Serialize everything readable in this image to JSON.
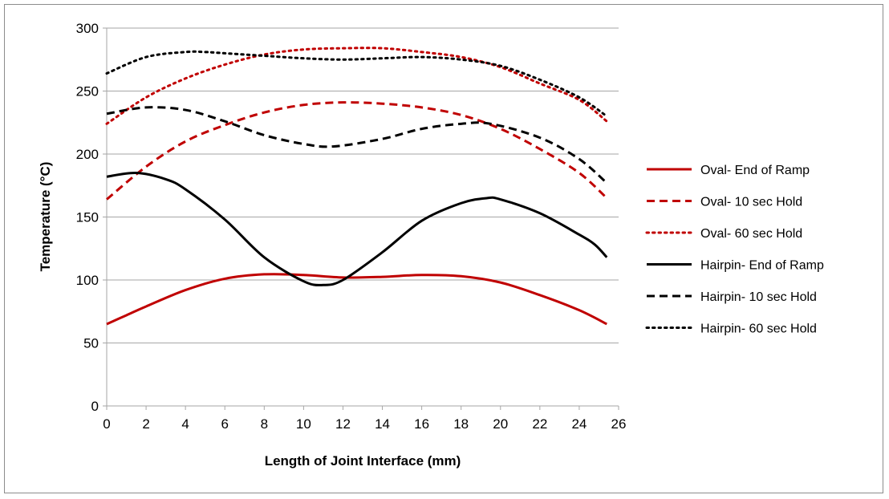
{
  "chart_data": {
    "type": "line",
    "title": "",
    "xlabel": "Length of Joint Interface (mm)",
    "ylabel": "Temperature (°C)",
    "xlim": [
      0,
      26
    ],
    "ylim": [
      0,
      300
    ],
    "xticks": [
      0,
      2,
      4,
      6,
      8,
      10,
      12,
      14,
      16,
      18,
      20,
      22,
      24,
      26
    ],
    "yticks": [
      0,
      50,
      100,
      150,
      200,
      250,
      300
    ],
    "grid": "horizontal",
    "legend": "right",
    "series": [
      {
        "name": "Oval- End of Ramp",
        "color": "#c00000",
        "style": "solid",
        "x": [
          0,
          1,
          2,
          4,
          6,
          8,
          10,
          12,
          14,
          16,
          18,
          20,
          22,
          24,
          25.4
        ],
        "y": [
          65,
          72,
          79,
          92,
          101,
          104.5,
          104,
          102,
          102.5,
          104,
          103,
          98,
          88,
          76,
          65
        ]
      },
      {
        "name": "Oval- 10 sec Hold",
        "color": "#c00000",
        "style": "dashed",
        "x": [
          0,
          2,
          4,
          6,
          8,
          10,
          12,
          14,
          16,
          18,
          20,
          22,
          24,
          25.4
        ],
        "y": [
          164,
          190,
          210,
          223,
          233,
          239,
          241,
          240,
          237,
          231,
          220,
          204,
          185,
          165
        ]
      },
      {
        "name": "Oval- 60 sec Hold",
        "color": "#c00000",
        "style": "dotted",
        "x": [
          0,
          2,
          4,
          6,
          8,
          10,
          12,
          14,
          16,
          18,
          20,
          22,
          24,
          25.4
        ],
        "y": [
          224,
          245,
          260,
          271,
          279,
          283,
          284,
          284,
          281,
          277,
          269,
          256,
          243,
          226
        ]
      },
      {
        "name": "Hairpin- End of Ramp",
        "color": "#000000",
        "style": "solid",
        "x": [
          0,
          1.5,
          3,
          4,
          6,
          8,
          10,
          11,
          12,
          14,
          16,
          18,
          19.3,
          20,
          22,
          24,
          24.8,
          25.4
        ],
        "y": [
          182,
          185,
          180,
          172,
          148,
          118,
          99,
          96,
          100,
          122,
          147,
          161,
          165,
          164,
          153,
          136,
          128,
          118
        ]
      },
      {
        "name": "Hairpin- 10 sec Hold",
        "color": "#000000",
        "style": "dashed",
        "x": [
          0,
          2,
          4,
          6,
          8,
          10,
          11.5,
          14,
          16,
          18,
          19.5,
          22,
          24,
          25.4
        ],
        "y": [
          232,
          237,
          235,
          226,
          215,
          208,
          206,
          212,
          220,
          224,
          224,
          213,
          196,
          177
        ]
      },
      {
        "name": "Hairpin- 60 sec Hold",
        "color": "#000000",
        "style": "dotted",
        "x": [
          0,
          2,
          4,
          5,
          6,
          8,
          10,
          12,
          14,
          16,
          18,
          20,
          22,
          24,
          25.4
        ],
        "y": [
          264,
          277,
          281,
          281,
          280,
          278,
          276,
          275,
          276,
          277,
          275,
          270,
          259,
          245,
          230
        ]
      }
    ]
  }
}
